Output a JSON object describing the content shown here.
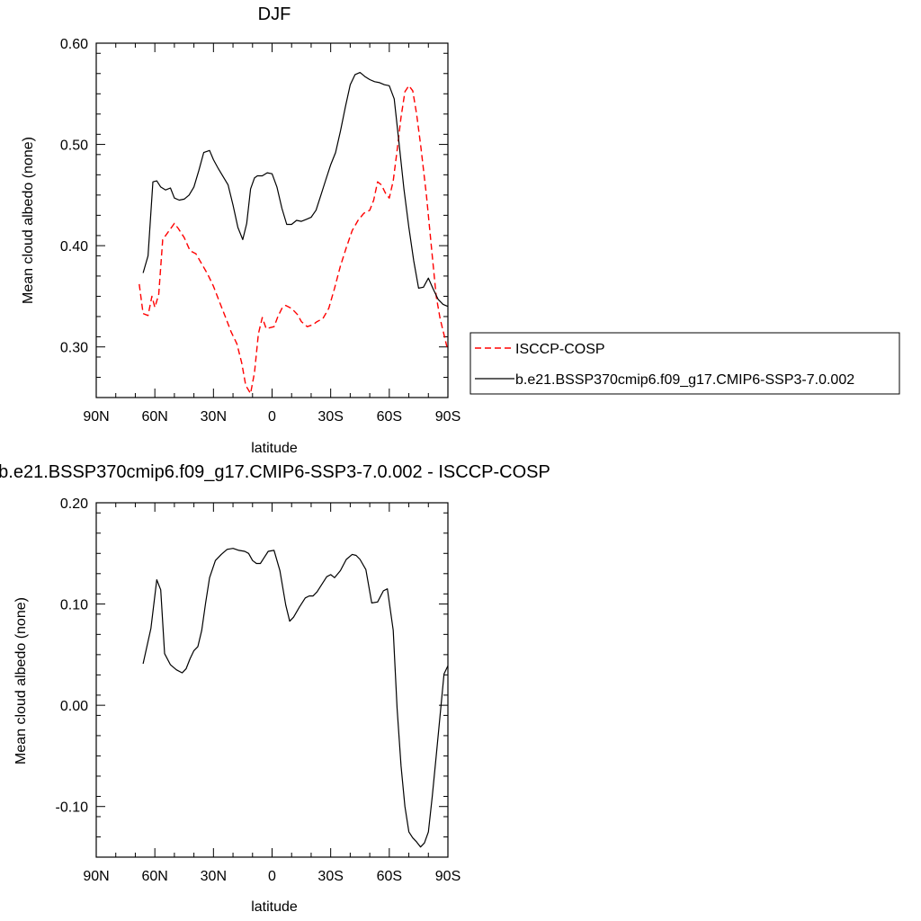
{
  "chart_data": [
    {
      "type": "line",
      "title": "DJF",
      "xlabel": "latitude",
      "ylabel": "Mean cloud albedo (none)",
      "xlim": [
        90,
        -90
      ],
      "ylim": [
        0.25,
        0.6
      ],
      "x_ticks": [
        90,
        60,
        30,
        0,
        -30,
        -60,
        -90
      ],
      "x_tick_labels": [
        "90N",
        "60N",
        "30N",
        "0",
        "30S",
        "60S",
        "90S"
      ],
      "y_ticks": [
        0.3,
        0.4,
        0.5,
        0.6
      ],
      "y_tick_labels": [
        "0.30",
        "0.40",
        "0.50",
        "0.60"
      ],
      "legend_position": "right",
      "series": [
        {
          "name": "ISCCP-COSP",
          "color": "#ff0000",
          "dash": "dashed",
          "x": [
            68,
            66,
            63.5,
            61.5,
            60,
            58,
            56,
            53,
            50,
            48,
            45,
            42,
            39,
            36,
            33,
            30,
            27,
            24,
            21,
            18,
            15.5,
            13.5,
            11,
            9,
            7,
            5,
            3,
            1,
            -1,
            -3,
            -5,
            -7,
            -10,
            -13,
            -15,
            -18,
            -21,
            -23,
            -26,
            -29,
            -32,
            -35,
            -38,
            -41,
            -44,
            -47,
            -50,
            -52,
            -54,
            -56,
            -58,
            -60,
            -62,
            -64,
            -66,
            -68,
            -70,
            -72,
            -74,
            -76,
            -79,
            -82,
            -84,
            -86,
            -88,
            -89.5
          ],
          "values": [
            0.362,
            0.333,
            0.331,
            0.35,
            0.339,
            0.352,
            0.406,
            0.414,
            0.422,
            0.417,
            0.408,
            0.395,
            0.392,
            0.382,
            0.372,
            0.36,
            0.345,
            0.33,
            0.315,
            0.303,
            0.284,
            0.262,
            0.254,
            0.275,
            0.313,
            0.329,
            0.318,
            0.319,
            0.32,
            0.33,
            0.338,
            0.341,
            0.338,
            0.332,
            0.325,
            0.32,
            0.322,
            0.325,
            0.328,
            0.338,
            0.358,
            0.38,
            0.398,
            0.415,
            0.425,
            0.432,
            0.435,
            0.445,
            0.463,
            0.46,
            0.452,
            0.447,
            0.464,
            0.494,
            0.527,
            0.552,
            0.558,
            0.553,
            0.53,
            0.5,
            0.45,
            0.39,
            0.35,
            0.328,
            0.312,
            0.3
          ]
        },
        {
          "name": "b.e21.BSSP370cmip6.f09_g17.CMIP6-SSP3-7.0.002",
          "color": "#000000",
          "dash": "solid",
          "x": [
            66,
            63.5,
            61,
            59,
            57,
            54.5,
            52,
            50,
            47.5,
            45,
            42.5,
            40,
            37.5,
            35,
            32,
            30,
            27.5,
            25,
            22.5,
            20,
            17.5,
            15,
            13,
            11,
            9,
            7.5,
            5,
            2.5,
            0,
            -2.5,
            -5,
            -7.5,
            -10,
            -12.5,
            -15,
            -17.5,
            -20,
            -22.5,
            -25,
            -27.5,
            -30,
            -32.5,
            -35,
            -37.5,
            -40,
            -42.5,
            -45,
            -47.5,
            -50,
            -52.5,
            -55,
            -57.5,
            -60,
            -62.5,
            -65,
            -67.5,
            -70,
            -72.5,
            -75,
            -77.5,
            -80,
            -82.5,
            -85,
            -87.5,
            -90
          ],
          "values": [
            0.373,
            0.39,
            0.463,
            0.464,
            0.458,
            0.455,
            0.457,
            0.447,
            0.445,
            0.446,
            0.45,
            0.458,
            0.474,
            0.492,
            0.494,
            0.485,
            0.476,
            0.468,
            0.46,
            0.44,
            0.418,
            0.406,
            0.422,
            0.456,
            0.467,
            0.469,
            0.469,
            0.472,
            0.471,
            0.458,
            0.437,
            0.421,
            0.421,
            0.425,
            0.424,
            0.426,
            0.428,
            0.435,
            0.45,
            0.465,
            0.48,
            0.492,
            0.513,
            0.537,
            0.559,
            0.569,
            0.571,
            0.567,
            0.564,
            0.562,
            0.561,
            0.559,
            0.558,
            0.545,
            0.501,
            0.456,
            0.418,
            0.385,
            0.358,
            0.359,
            0.368,
            0.357,
            0.347,
            0.342,
            0.34
          ]
        }
      ]
    },
    {
      "type": "line",
      "title": "b.e21.BSSP370cmip6.f09_g17.CMIP6-SSP3-7.0.002 - ISCCP-COSP",
      "xlabel": "latitude",
      "ylabel": "Mean cloud albedo (none)",
      "xlim": [
        90,
        -90
      ],
      "ylim": [
        -0.15,
        0.2
      ],
      "x_ticks": [
        90,
        60,
        30,
        0,
        -30,
        -60,
        -90
      ],
      "x_tick_labels": [
        "90N",
        "60N",
        "30N",
        "0",
        "30S",
        "60S",
        "90S"
      ],
      "y_ticks": [
        -0.1,
        0.0,
        0.1,
        0.2
      ],
      "y_tick_labels": [
        "-0.10",
        "0.00",
        "0.10",
        "0.20"
      ],
      "series": [
        {
          "color": "#000000",
          "dash": "solid",
          "x": [
            66,
            62,
            59,
            57,
            55,
            52,
            49,
            46,
            44,
            42,
            40,
            38,
            36,
            34,
            32,
            29,
            26,
            23,
            20,
            17,
            14,
            12,
            10,
            8,
            6,
            4,
            2,
            -1,
            -4,
            -7,
            -9,
            -11,
            -14,
            -17,
            -19,
            -21,
            -23,
            -25,
            -28,
            -30,
            -32,
            -35,
            -38,
            -41,
            -43,
            -45,
            -48,
            -51,
            -54,
            -57,
            -59,
            -62,
            -64,
            -66,
            -68,
            -70,
            -72,
            -74,
            -76,
            -78,
            -80,
            -82,
            -84,
            -86,
            -88,
            -90
          ],
          "values": [
            0.041,
            0.076,
            0.124,
            0.114,
            0.051,
            0.04,
            0.035,
            0.032,
            0.036,
            0.046,
            0.054,
            0.058,
            0.074,
            0.101,
            0.126,
            0.143,
            0.149,
            0.154,
            0.155,
            0.153,
            0.152,
            0.15,
            0.143,
            0.14,
            0.14,
            0.146,
            0.152,
            0.153,
            0.133,
            0.099,
            0.083,
            0.087,
            0.097,
            0.106,
            0.108,
            0.108,
            0.112,
            0.118,
            0.127,
            0.129,
            0.126,
            0.133,
            0.144,
            0.149,
            0.148,
            0.144,
            0.134,
            0.101,
            0.102,
            0.113,
            0.115,
            0.074,
            -0.003,
            -0.06,
            -0.1,
            -0.125,
            -0.131,
            -0.135,
            -0.14,
            -0.136,
            -0.125,
            -0.09,
            -0.05,
            -0.01,
            0.031,
            0.039
          ]
        }
      ]
    }
  ]
}
